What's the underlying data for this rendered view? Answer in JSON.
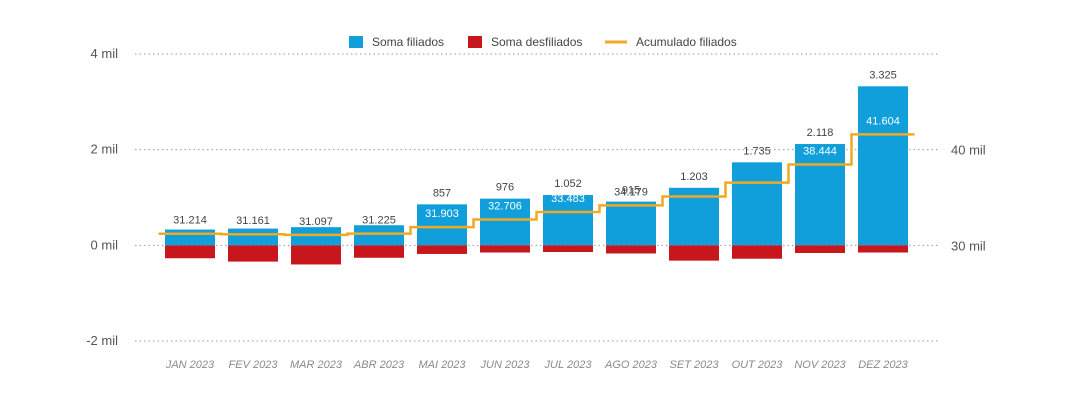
{
  "chart_data": {
    "type": "bar",
    "categories": [
      "JAN 2023",
      "FEV 2023",
      "MAR 2023",
      "ABR 2023",
      "MAI 2023",
      "JUN 2023",
      "JUL 2023",
      "AGO 2023",
      "SET 2023",
      "OUT 2023",
      "NOV 2023",
      "DEZ 2023"
    ],
    "series": [
      {
        "name": "Soma filiados",
        "type": "bar",
        "axis": "left",
        "color": "#119fdc",
        "values": [
          330,
          350,
          380,
          420,
          857,
          976,
          1052,
          915,
          1203,
          1735,
          2118,
          3325
        ],
        "labels": [
          "",
          "",
          "",
          "",
          "857",
          "976",
          "1.052",
          "915",
          "1.203",
          "1.735",
          "2.118",
          "3.325"
        ]
      },
      {
        "name": "Soma desfiliados",
        "type": "bar",
        "axis": "left",
        "color": "#c8161d",
        "values": [
          -270,
          -340,
          -400,
          -260,
          -180,
          -150,
          -140,
          -170,
          -320,
          -280,
          -160,
          -150
        ]
      },
      {
        "name": "Acumulado filiados",
        "type": "step-line",
        "axis": "right",
        "color": "#f2a922",
        "values": [
          31214,
          31161,
          31097,
          31225,
          31903,
          32706,
          33483,
          34179,
          35102,
          36557,
          38444,
          41604
        ],
        "labels": [
          "31.214",
          "31.161",
          "31.097",
          "31.225",
          "31.903",
          "32.706",
          "33.483",
          "34.179",
          "",
          "",
          "38.444",
          "41.604"
        ]
      }
    ],
    "y_left": {
      "min": -2000,
      "max": 4000,
      "ticks": [
        4000,
        2000,
        0,
        -2000
      ],
      "tick_labels": [
        "4 mil",
        "2 mil",
        "0 mil",
        "-2 mil"
      ]
    },
    "y_right": {
      "min": 20000,
      "max": 50000,
      "ticks": [
        40000,
        30000
      ],
      "tick_labels": [
        "40 mil",
        "30 mil"
      ]
    },
    "legend_position": "top-center",
    "grid": true
  }
}
